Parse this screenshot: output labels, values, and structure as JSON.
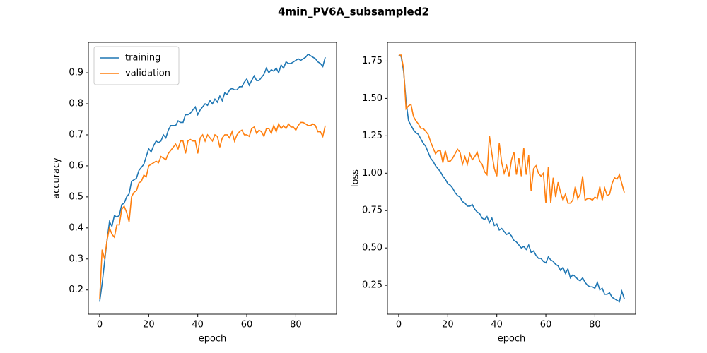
{
  "title": "4min_PV6A_subsampled2",
  "chart_data": [
    {
      "type": "line",
      "xlabel": "epoch",
      "ylabel": "accuracy",
      "x": [
        0,
        1,
        2,
        3,
        4,
        5,
        6,
        7,
        8,
        9,
        10,
        11,
        12,
        13,
        14,
        15,
        16,
        17,
        18,
        19,
        20,
        21,
        22,
        23,
        24,
        25,
        26,
        27,
        28,
        29,
        30,
        31,
        32,
        33,
        34,
        35,
        36,
        37,
        38,
        39,
        40,
        41,
        42,
        43,
        44,
        45,
        46,
        47,
        48,
        49,
        50,
        51,
        52,
        53,
        54,
        55,
        56,
        57,
        58,
        59,
        60,
        61,
        62,
        63,
        64,
        65,
        66,
        67,
        68,
        69,
        70,
        71,
        72,
        73,
        74,
        75,
        76,
        77,
        78,
        79,
        80,
        81,
        82,
        83,
        84,
        85,
        86,
        87,
        88,
        89,
        90,
        91,
        92
      ],
      "xlim": [
        -4.6,
        96.6
      ],
      "xticks": [
        0,
        20,
        40,
        60,
        80
      ],
      "ylim": [
        0.122,
        0.998
      ],
      "yticks": [
        0.2,
        0.3,
        0.4,
        0.5,
        0.6,
        0.7,
        0.8,
        0.9
      ],
      "legend": "upper left",
      "series": [
        {
          "name": "training",
          "color": "#1f77b4",
          "values": [
            0.162,
            0.22,
            0.29,
            0.36,
            0.42,
            0.405,
            0.44,
            0.435,
            0.44,
            0.475,
            0.48,
            0.5,
            0.51,
            0.55,
            0.555,
            0.56,
            0.585,
            0.595,
            0.605,
            0.63,
            0.655,
            0.645,
            0.665,
            0.68,
            0.675,
            0.68,
            0.7,
            0.69,
            0.715,
            0.73,
            0.73,
            0.73,
            0.745,
            0.74,
            0.74,
            0.765,
            0.765,
            0.77,
            0.78,
            0.79,
            0.765,
            0.78,
            0.79,
            0.8,
            0.795,
            0.81,
            0.8,
            0.815,
            0.805,
            0.825,
            0.81,
            0.835,
            0.83,
            0.845,
            0.85,
            0.845,
            0.845,
            0.855,
            0.855,
            0.87,
            0.88,
            0.86,
            0.875,
            0.89,
            0.875,
            0.875,
            0.885,
            0.895,
            0.915,
            0.9,
            0.91,
            0.905,
            0.915,
            0.9,
            0.925,
            0.915,
            0.935,
            0.93,
            0.93,
            0.935,
            0.94,
            0.945,
            0.94,
            0.945,
            0.95,
            0.96,
            0.955,
            0.95,
            0.945,
            0.935,
            0.93,
            0.92,
            0.95
          ]
        },
        {
          "name": "validation",
          "color": "#ff7f0e",
          "values": [
            0.17,
            0.33,
            0.3,
            0.36,
            0.4,
            0.38,
            0.37,
            0.41,
            0.41,
            0.46,
            0.47,
            0.45,
            0.42,
            0.5,
            0.515,
            0.52,
            0.545,
            0.55,
            0.57,
            0.565,
            0.6,
            0.605,
            0.61,
            0.615,
            0.61,
            0.63,
            0.625,
            0.62,
            0.64,
            0.65,
            0.66,
            0.67,
            0.655,
            0.68,
            0.68,
            0.64,
            0.68,
            0.685,
            0.68,
            0.68,
            0.64,
            0.69,
            0.7,
            0.68,
            0.7,
            0.69,
            0.68,
            0.7,
            0.695,
            0.66,
            0.69,
            0.7,
            0.7,
            0.69,
            0.71,
            0.68,
            0.7,
            0.71,
            0.715,
            0.7,
            0.7,
            0.695,
            0.72,
            0.725,
            0.705,
            0.715,
            0.71,
            0.695,
            0.72,
            0.72,
            0.705,
            0.73,
            0.71,
            0.735,
            0.72,
            0.73,
            0.72,
            0.735,
            0.725,
            0.725,
            0.715,
            0.73,
            0.74,
            0.74,
            0.735,
            0.73,
            0.73,
            0.735,
            0.73,
            0.71,
            0.71,
            0.695,
            0.73
          ]
        }
      ]
    },
    {
      "type": "line",
      "xlabel": "epoch",
      "ylabel": "loss",
      "x": [
        0,
        1,
        2,
        3,
        4,
        5,
        6,
        7,
        8,
        9,
        10,
        11,
        12,
        13,
        14,
        15,
        16,
        17,
        18,
        19,
        20,
        21,
        22,
        23,
        24,
        25,
        26,
        27,
        28,
        29,
        30,
        31,
        32,
        33,
        34,
        35,
        36,
        37,
        38,
        39,
        40,
        41,
        42,
        43,
        44,
        45,
        46,
        47,
        48,
        49,
        50,
        51,
        52,
        53,
        54,
        55,
        56,
        57,
        58,
        59,
        60,
        61,
        62,
        63,
        64,
        65,
        66,
        67,
        68,
        69,
        70,
        71,
        72,
        73,
        74,
        75,
        76,
        77,
        78,
        79,
        80,
        81,
        82,
        83,
        84,
        85,
        86,
        87,
        88,
        89,
        90,
        91,
        92
      ],
      "xlim": [
        -4.6,
        96.6
      ],
      "xticks": [
        0,
        20,
        40,
        60,
        80
      ],
      "ylim": [
        0.057,
        1.875
      ],
      "yticks": [
        0.25,
        {
          "value": 0.5,
          "label": "0.50"
        },
        0.75,
        {
          "value": 1.0,
          "label": "1.00"
        },
        1.25,
        {
          "value": 1.5,
          "label": "1.50"
        },
        1.75
      ],
      "series": [
        {
          "color": "#1f77b4",
          "values": [
            1.79,
            1.78,
            1.68,
            1.48,
            1.35,
            1.32,
            1.29,
            1.27,
            1.26,
            1.23,
            1.2,
            1.18,
            1.14,
            1.1,
            1.08,
            1.05,
            1.03,
            1.01,
            0.98,
            0.96,
            0.93,
            0.92,
            0.9,
            0.87,
            0.85,
            0.84,
            0.81,
            0.8,
            0.78,
            0.78,
            0.79,
            0.76,
            0.74,
            0.73,
            0.7,
            0.69,
            0.71,
            0.67,
            0.7,
            0.65,
            0.66,
            0.62,
            0.63,
            0.61,
            0.59,
            0.6,
            0.58,
            0.55,
            0.54,
            0.52,
            0.5,
            0.51,
            0.49,
            0.52,
            0.47,
            0.48,
            0.45,
            0.43,
            0.43,
            0.41,
            0.4,
            0.44,
            0.42,
            0.41,
            0.39,
            0.38,
            0.35,
            0.37,
            0.33,
            0.36,
            0.3,
            0.32,
            0.31,
            0.29,
            0.28,
            0.3,
            0.27,
            0.25,
            0.24,
            0.24,
            0.23,
            0.27,
            0.22,
            0.23,
            0.19,
            0.19,
            0.2,
            0.17,
            0.16,
            0.15,
            0.14,
            0.21,
            0.16
          ]
        },
        {
          "color": "#ff7f0e",
          "values": [
            1.79,
            1.79,
            1.7,
            1.43,
            1.45,
            1.46,
            1.38,
            1.35,
            1.33,
            1.3,
            1.3,
            1.28,
            1.26,
            1.21,
            1.17,
            1.13,
            1.15,
            1.15,
            1.07,
            1.15,
            1.08,
            1.08,
            1.1,
            1.13,
            1.16,
            1.14,
            1.06,
            1.11,
            1.06,
            1.13,
            1.09,
            1.11,
            1.14,
            1.08,
            1.06,
            1.01,
            0.99,
            1.25,
            1.13,
            1.03,
            0.98,
            1.2,
            1.07,
            1.0,
            1.05,
            0.98,
            1.09,
            1.14,
            0.99,
            1.1,
            0.98,
            1.17,
            0.99,
            1.12,
            0.88,
            1.03,
            1.05,
            1.0,
            0.98,
            1.0,
            0.8,
            1.04,
            0.8,
            0.97,
            0.84,
            0.94,
            0.87,
            0.82,
            0.86,
            0.8,
            0.8,
            0.82,
            0.91,
            0.83,
            0.86,
            0.98,
            0.82,
            0.83,
            0.83,
            0.82,
            0.84,
            0.83,
            0.91,
            0.82,
            0.9,
            0.85,
            0.86,
            0.93,
            0.97,
            0.96,
            0.99,
            0.93,
            0.87
          ]
        }
      ]
    }
  ]
}
